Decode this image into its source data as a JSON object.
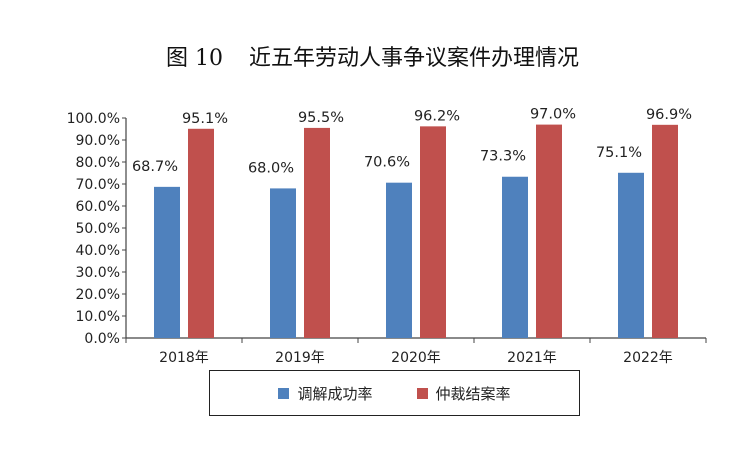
{
  "title": {
    "number": "图 10",
    "text": "近五年劳动人事争议案件办理情况"
  },
  "chart_data": {
    "type": "bar",
    "categories": [
      "2018年",
      "2019年",
      "2020年",
      "2021年",
      "2022年"
    ],
    "series": [
      {
        "name": "调解成功率",
        "values": [
          68.7,
          68.0,
          70.6,
          73.3,
          75.1
        ],
        "labels": [
          "68.7%",
          "68.0%",
          "70.6%",
          "73.3%",
          "75.1%"
        ],
        "color": "#4F81BD"
      },
      {
        "name": "仲裁结案率",
        "values": [
          95.1,
          95.5,
          96.2,
          97.0,
          96.9
        ],
        "labels": [
          "95.1%",
          "95.5%",
          "96.2%",
          "97.0%",
          "96.9%"
        ],
        "color": "#C0504D"
      }
    ],
    "yticks": [
      "0.0%",
      "10.0%",
      "20.0%",
      "30.0%",
      "40.0%",
      "50.0%",
      "60.0%",
      "70.0%",
      "80.0%",
      "90.0%",
      "100.0%"
    ],
    "ylim": [
      0,
      100
    ],
    "grid": false,
    "legend_position": "bottom"
  }
}
